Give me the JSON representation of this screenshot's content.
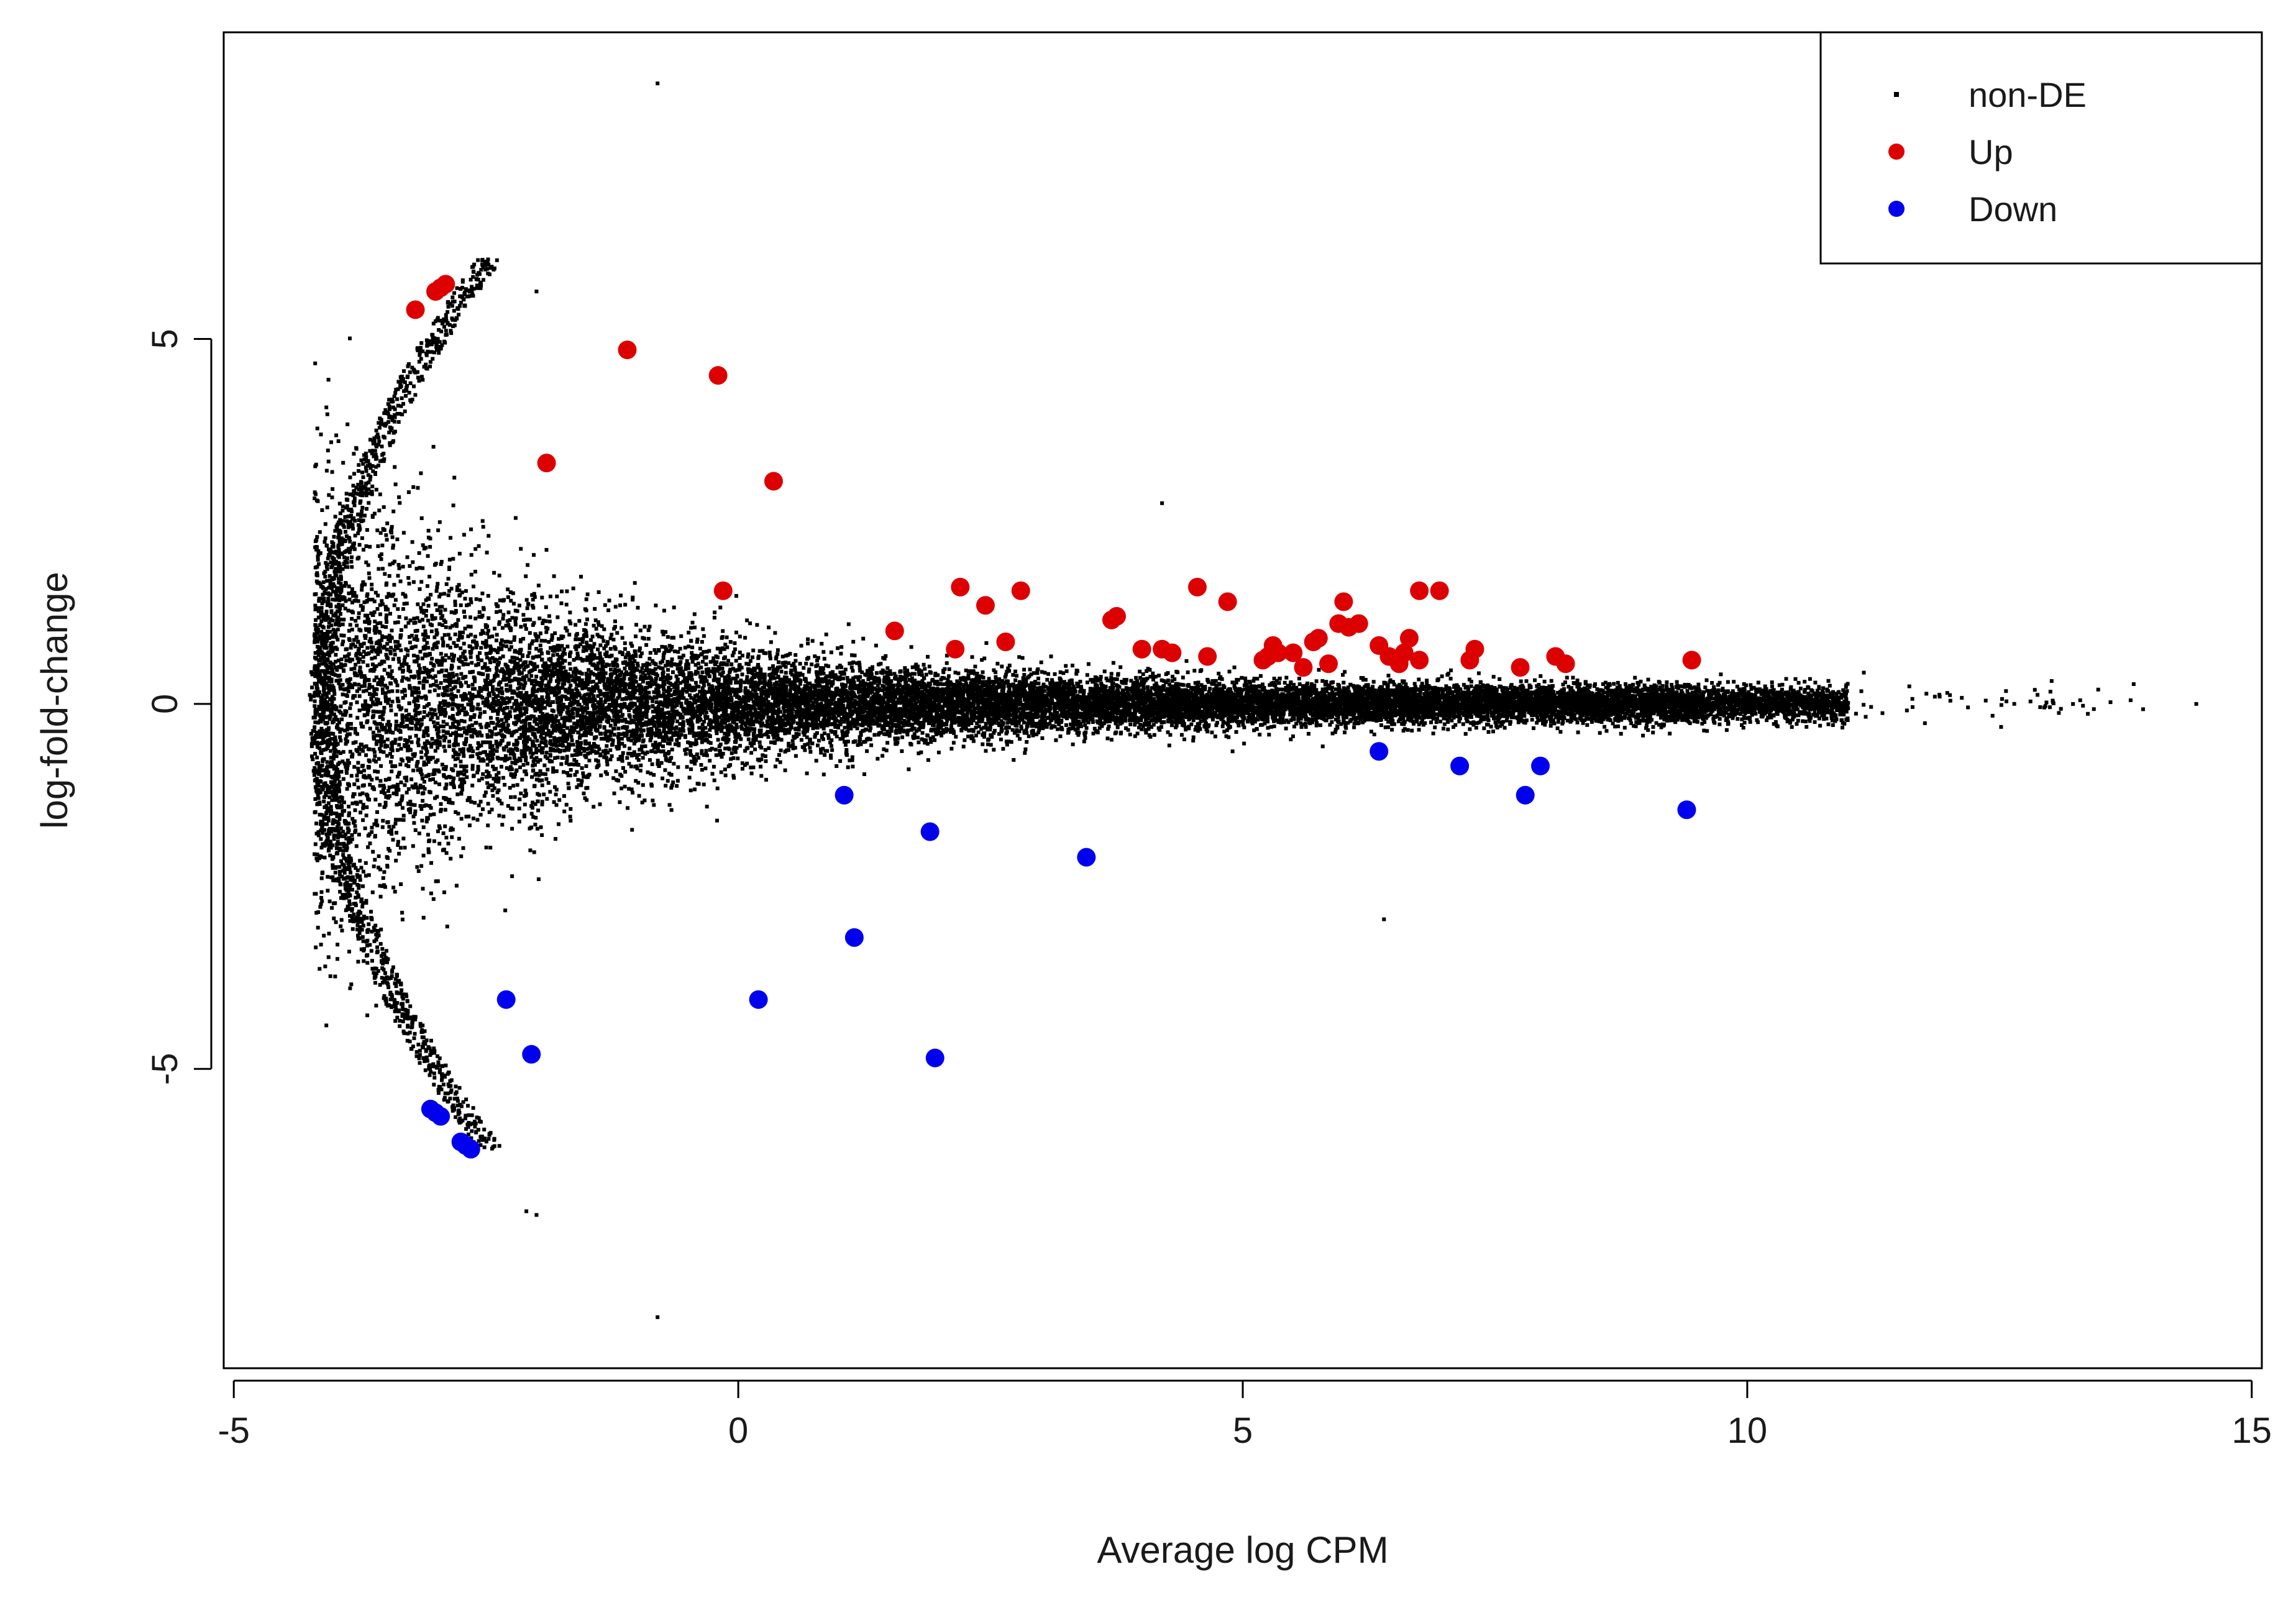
{
  "chart_data": {
    "type": "scatter",
    "title": "",
    "xlabel": "Average log CPM",
    "ylabel": "log-fold-change",
    "xlim": [
      -5.1,
      15.1
    ],
    "ylim": [
      -9.1,
      9.2
    ],
    "xticks": [
      -5,
      0,
      5,
      10,
      15
    ],
    "yticks": [
      -5,
      0,
      5
    ],
    "xtick_labels": [
      "-5",
      "0",
      "5",
      "10",
      "15"
    ],
    "ytick_labels": [
      "-5",
      "0",
      "5"
    ],
    "grid": false,
    "legend": {
      "position": "top-right",
      "entries": [
        {
          "label": "non-DE",
          "color": "#000000",
          "marker": "small-dot"
        },
        {
          "label": "Up",
          "color": "#dd0000",
          "marker": "filled-circle"
        },
        {
          "label": "Down",
          "color": "#0000ee",
          "marker": "filled-circle"
        }
      ]
    },
    "colors": {
      "non_de": "#000000",
      "up": "#dd0000",
      "down": "#0000ee"
    },
    "series": [
      {
        "name": "Up",
        "color": "#dd0000",
        "points": [
          [
            -3.2,
            5.4
          ],
          [
            -3.0,
            5.65
          ],
          [
            -2.95,
            5.7
          ],
          [
            -2.9,
            5.75
          ],
          [
            -1.1,
            4.85
          ],
          [
            -0.2,
            4.5
          ],
          [
            -1.9,
            3.3
          ],
          [
            0.35,
            3.05
          ],
          [
            -0.15,
            1.55
          ],
          [
            1.55,
            1.0
          ],
          [
            2.2,
            1.6
          ],
          [
            2.45,
            1.35
          ],
          [
            2.8,
            1.55
          ],
          [
            2.15,
            0.75
          ],
          [
            2.65,
            0.85
          ],
          [
            3.7,
            1.15
          ],
          [
            3.75,
            1.2
          ],
          [
            4.0,
            0.75
          ],
          [
            4.2,
            0.75
          ],
          [
            4.3,
            0.7
          ],
          [
            4.55,
            1.6
          ],
          [
            4.65,
            0.65
          ],
          [
            4.85,
            1.4
          ],
          [
            5.2,
            0.6
          ],
          [
            5.25,
            0.65
          ],
          [
            5.3,
            0.8
          ],
          [
            5.35,
            0.7
          ],
          [
            5.5,
            0.7
          ],
          [
            5.6,
            0.5
          ],
          [
            5.7,
            0.85
          ],
          [
            5.75,
            0.9
          ],
          [
            5.85,
            0.55
          ],
          [
            5.95,
            1.1
          ],
          [
            6.0,
            1.4
          ],
          [
            6.05,
            1.05
          ],
          [
            6.15,
            1.1
          ],
          [
            6.35,
            0.8
          ],
          [
            6.45,
            0.65
          ],
          [
            6.55,
            0.55
          ],
          [
            6.6,
            0.7
          ],
          [
            6.65,
            0.9
          ],
          [
            6.75,
            1.55
          ],
          [
            6.75,
            0.6
          ],
          [
            6.95,
            1.55
          ],
          [
            7.25,
            0.6
          ],
          [
            7.3,
            0.75
          ],
          [
            7.75,
            0.5
          ],
          [
            8.1,
            0.65
          ],
          [
            8.2,
            0.55
          ],
          [
            9.45,
            0.6
          ]
        ]
      },
      {
        "name": "Down",
        "color": "#0000ee",
        "points": [
          [
            -3.05,
            -5.55
          ],
          [
            -3.0,
            -5.6
          ],
          [
            -2.95,
            -5.65
          ],
          [
            -2.75,
            -6.0
          ],
          [
            -2.7,
            -6.05
          ],
          [
            -2.65,
            -6.1
          ],
          [
            -2.3,
            -4.05
          ],
          [
            -2.05,
            -4.8
          ],
          [
            0.2,
            -4.05
          ],
          [
            1.05,
            -1.25
          ],
          [
            1.15,
            -3.2
          ],
          [
            1.9,
            -1.75
          ],
          [
            1.95,
            -4.85
          ],
          [
            3.45,
            -2.1
          ],
          [
            6.35,
            -0.65
          ],
          [
            7.15,
            -0.85
          ],
          [
            7.8,
            -1.25
          ],
          [
            7.95,
            -0.85
          ],
          [
            9.4,
            -1.45
          ]
        ]
      }
    ],
    "non_de_description": "Roughly 20,000 small black points forming a funnel shape centred on log-fold-change 0, wide at low average log CPM (about -4.3) and narrowing toward high CPM (up to about 14.5); lower-bounded arcs at the far left edge.",
    "non_de_outliers": [
      [
        -0.8,
        8.5
      ],
      [
        -2.0,
        5.65
      ],
      [
        -0.8,
        -8.4
      ],
      [
        -2.0,
        -7.0
      ],
      [
        -2.1,
        -6.95
      ],
      [
        6.4,
        -2.95
      ],
      [
        4.2,
        2.75
      ],
      [
        13.8,
        0.05
      ],
      [
        14.45,
        0.0
      ],
      [
        13.3,
        0.05
      ]
    ]
  }
}
